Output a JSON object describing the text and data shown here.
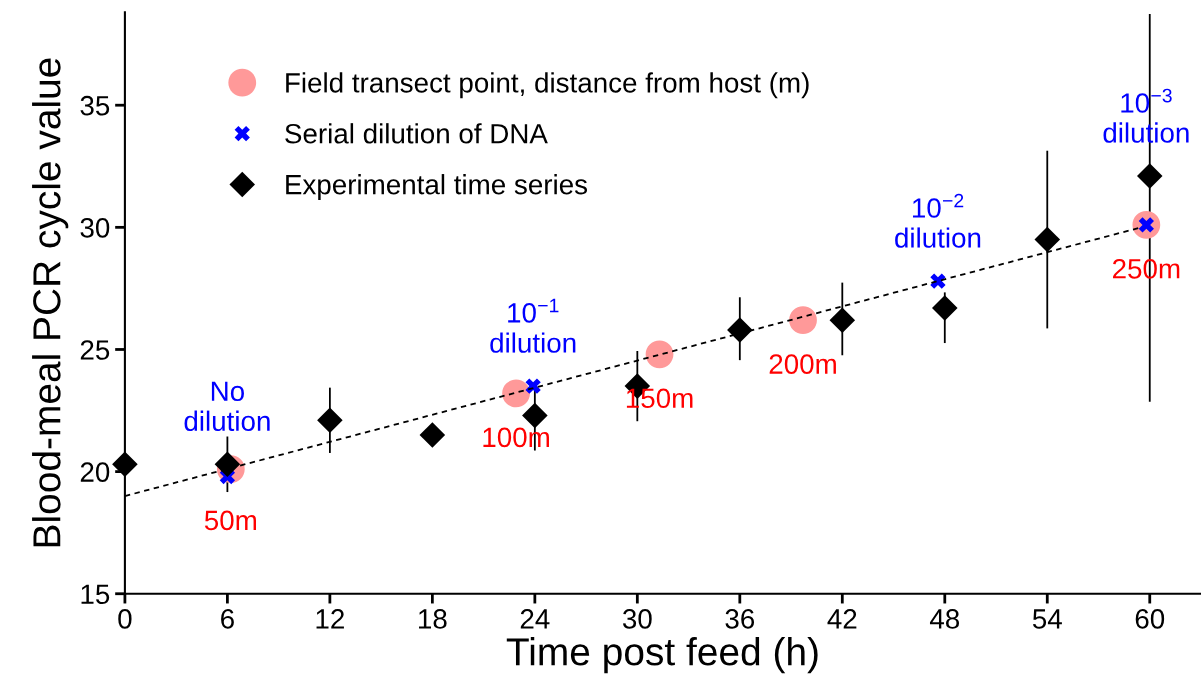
{
  "chart_data": {
    "type": "scatter",
    "xlabel": "Time post feed (h)",
    "ylabel": "Blood-meal PCR cycle value",
    "xlim": [
      0,
      63
    ],
    "ylim": [
      15,
      38.8
    ],
    "xticks": [
      0,
      6,
      12,
      18,
      24,
      30,
      36,
      42,
      48,
      54,
      60
    ],
    "yticks": [
      15,
      20,
      25,
      30,
      35
    ],
    "grid": false,
    "legend": "top left",
    "series": [
      {
        "name": "Field transect point, distance from host (m)",
        "marker": "circle",
        "color": "#ff9999",
        "x": [
          6.2,
          22.9,
          31.3,
          39.7,
          59.8
        ],
        "values": [
          20.1,
          23.2,
          24.8,
          26.2,
          30.1
        ]
      },
      {
        "name": "Serial dilution of DNA",
        "marker": "cross",
        "color": "#0000ff",
        "x": [
          6.0,
          23.9,
          47.6,
          59.8
        ],
        "values": [
          19.8,
          23.5,
          27.8,
          30.1
        ]
      },
      {
        "name": "Experimental time series",
        "marker": "diamond",
        "color": "#000000",
        "x": [
          0,
          6,
          12,
          18,
          24,
          30,
          36,
          42,
          48,
          54,
          60
        ],
        "values": [
          20.3,
          20.3,
          22.1,
          21.5,
          22.3,
          23.5,
          25.8,
          26.2,
          26.7,
          29.5,
          32.1
        ],
        "errors": [
          null,
          [
            19.2,
            21.4
          ],
          [
            20.8,
            23.4
          ],
          null,
          [
            20.9,
            23.5
          ],
          [
            22.1,
            24.9
          ],
          [
            24.6,
            27.1
          ],
          [
            24.8,
            27.7
          ],
          [
            25.3,
            27.3
          ],
          [
            25.9,
            33.1
          ],
          [
            22.9,
            38.7
          ]
        ]
      },
      {
        "type": "line",
        "line_style": "dashed",
        "marker": "none",
        "color": "#000000",
        "x": [
          0,
          59.5
        ],
        "values": [
          19.0,
          30.0
        ]
      }
    ],
    "annotations": [
      {
        "text": "No\ndilution",
        "x": 6.0,
        "y": 19.8
      },
      {
        "text": "10$^{−1}$\ndilution",
        "x": 23.9,
        "y": 23.5
      },
      {
        "text": "10$^{−2}$\ndilution",
        "x": 47.6,
        "y": 27.8
      },
      {
        "text": "10$^{−3}$\ndilution",
        "x": 59.8,
        "y": 30.1
      },
      {
        "text": "50m",
        "x": 6.2,
        "y": 20.1
      },
      {
        "text": "100m",
        "x": 22.9,
        "y": 23.2
      },
      {
        "text": "150m",
        "x": 31.3,
        "y": 24.8
      },
      {
        "text": "200m",
        "x": 39.7,
        "y": 26.2
      },
      {
        "text": "250m",
        "x": 59.8,
        "y": 30.1
      }
    ]
  }
}
